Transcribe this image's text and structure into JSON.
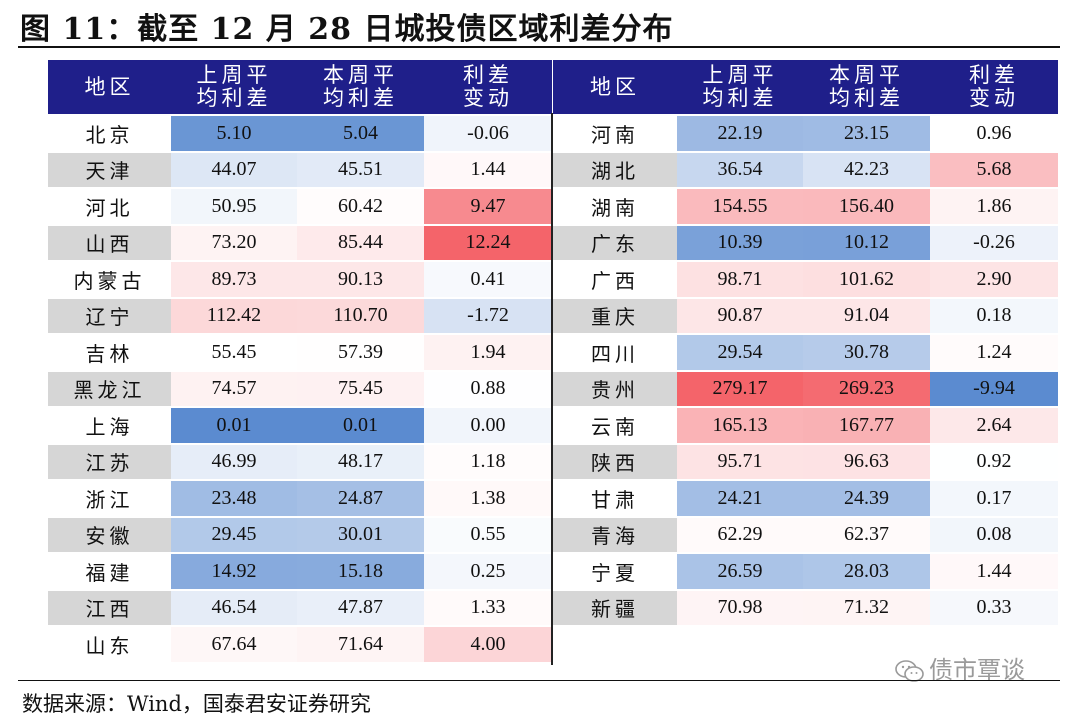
{
  "title": "图 11：截至 12 月 28 日城投债区域利差分布",
  "headers": {
    "region": "地区",
    "last_week_1": "上周平",
    "last_week_2": "均利差",
    "this_week_1": "本周平",
    "this_week_2": "均利差",
    "change_1": "利差",
    "change_2": "变动"
  },
  "left_rows": [
    {
      "region": "北京",
      "last": "5.10",
      "this": "5.04",
      "change": "-0.06"
    },
    {
      "region": "天津",
      "last": "44.07",
      "this": "45.51",
      "change": "1.44"
    },
    {
      "region": "河北",
      "last": "50.95",
      "this": "60.42",
      "change": "9.47"
    },
    {
      "region": "山西",
      "last": "73.20",
      "this": "85.44",
      "change": "12.24"
    },
    {
      "region": "内蒙古",
      "last": "89.73",
      "this": "90.13",
      "change": "0.41"
    },
    {
      "region": "辽宁",
      "last": "112.42",
      "this": "110.70",
      "change": "-1.72"
    },
    {
      "region": "吉林",
      "last": "55.45",
      "this": "57.39",
      "change": "1.94"
    },
    {
      "region": "黑龙江",
      "last": "74.57",
      "this": "75.45",
      "change": "0.88"
    },
    {
      "region": "上海",
      "last": "0.01",
      "this": "0.01",
      "change": "0.00"
    },
    {
      "region": "江苏",
      "last": "46.99",
      "this": "48.17",
      "change": "1.18"
    },
    {
      "region": "浙江",
      "last": "23.48",
      "this": "24.87",
      "change": "1.38"
    },
    {
      "region": "安徽",
      "last": "29.45",
      "this": "30.01",
      "change": "0.55"
    },
    {
      "region": "福建",
      "last": "14.92",
      "this": "15.18",
      "change": "0.25"
    },
    {
      "region": "江西",
      "last": "46.54",
      "this": "47.87",
      "change": "1.33"
    },
    {
      "region": "山东",
      "last": "67.64",
      "this": "71.64",
      "change": "4.00"
    }
  ],
  "right_rows": [
    {
      "region": "河南",
      "last": "22.19",
      "this": "23.15",
      "change": "0.96"
    },
    {
      "region": "湖北",
      "last": "36.54",
      "this": "42.23",
      "change": "5.68"
    },
    {
      "region": "湖南",
      "last": "154.55",
      "this": "156.40",
      "change": "1.86"
    },
    {
      "region": "广东",
      "last": "10.39",
      "this": "10.12",
      "change": "-0.26"
    },
    {
      "region": "广西",
      "last": "98.71",
      "this": "101.62",
      "change": "2.90"
    },
    {
      "region": "重庆",
      "last": "90.87",
      "this": "91.04",
      "change": "0.18"
    },
    {
      "region": "四川",
      "last": "29.54",
      "this": "30.78",
      "change": "1.24"
    },
    {
      "region": "贵州",
      "last": "279.17",
      "this": "269.23",
      "change": "-9.94"
    },
    {
      "region": "云南",
      "last": "165.13",
      "this": "167.77",
      "change": "2.64"
    },
    {
      "region": "陕西",
      "last": "95.71",
      "this": "96.63",
      "change": "0.92"
    },
    {
      "region": "甘肃",
      "last": "24.21",
      "this": "24.39",
      "change": "0.17"
    },
    {
      "region": "青海",
      "last": "62.29",
      "this": "62.37",
      "change": "0.08"
    },
    {
      "region": "宁夏",
      "last": "26.59",
      "this": "28.03",
      "change": "1.44"
    },
    {
      "region": "新疆",
      "last": "70.98",
      "this": "71.32",
      "change": "0.33"
    }
  ],
  "source": "数据来源：Wind，国泰君安证券研究",
  "watermark": "债市覃谈",
  "heat_colors": {
    "low": "#5b8bd0",
    "mid": "#ffffff",
    "high": "#f4646a",
    "region_alt": "#d6d6d6"
  }
}
